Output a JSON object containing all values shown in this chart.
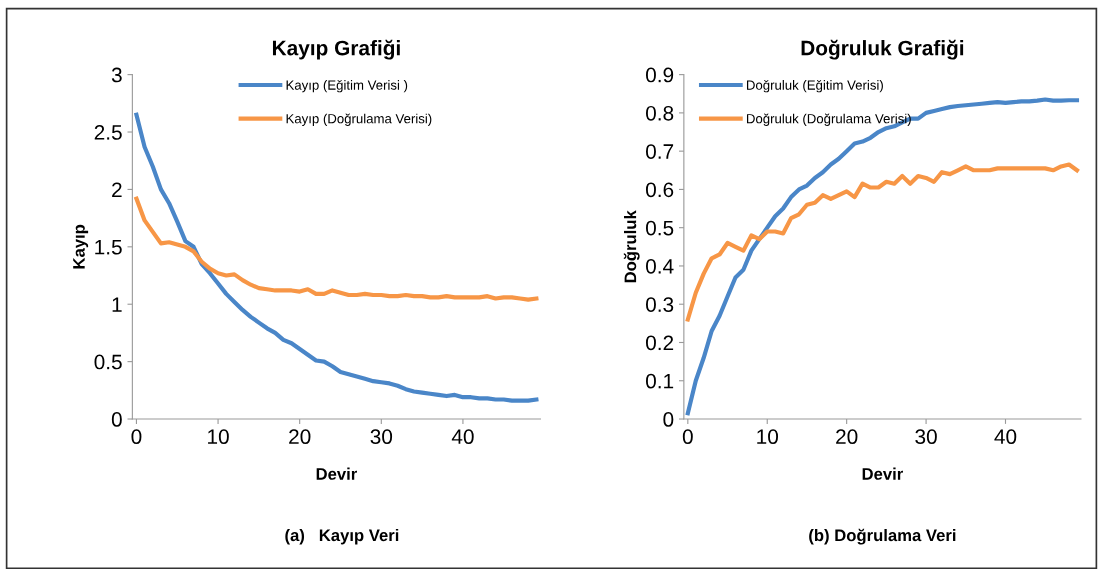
{
  "chart_data": [
    {
      "type": "line",
      "title": "Kayıp Grafiği",
      "xlabel": "Devir",
      "ylabel": "Kayıp",
      "annotations": [
        "(a)   Kayıp Veri"
      ],
      "x": [
        0,
        1,
        2,
        3,
        4,
        5,
        6,
        7,
        8,
        9,
        10,
        11,
        12,
        13,
        14,
        15,
        16,
        17,
        18,
        19,
        20,
        21,
        22,
        23,
        24,
        25,
        26,
        27,
        28,
        29,
        30,
        31,
        32,
        33,
        34,
        35,
        36,
        37,
        38,
        39,
        40,
        41,
        42,
        43,
        44,
        45,
        46,
        47,
        48,
        49
      ],
      "xlim": [
        -0.5,
        49.5
      ],
      "xticks": [
        0,
        10,
        20,
        30,
        40
      ],
      "ylim": [
        0,
        3
      ],
      "yticks": [
        0,
        0.5,
        1,
        1.5,
        2,
        2.5,
        3
      ],
      "grid": false,
      "legend": "top",
      "marker": "none",
      "line_style": "solid",
      "series": [
        {
          "name": "Kayıp (Eğitim Verisi )",
          "color": "#4a86c8",
          "values": [
            2.65,
            2.37,
            2.2,
            2.0,
            1.88,
            1.72,
            1.55,
            1.5,
            1.35,
            1.27,
            1.18,
            1.09,
            1.02,
            0.95,
            0.89,
            0.84,
            0.79,
            0.75,
            0.69,
            0.66,
            0.61,
            0.56,
            0.51,
            0.5,
            0.46,
            0.41,
            0.39,
            0.37,
            0.35,
            0.33,
            0.32,
            0.31,
            0.29,
            0.26,
            0.24,
            0.23,
            0.22,
            0.21,
            0.2,
            0.21,
            0.19,
            0.19,
            0.18,
            0.18,
            0.17,
            0.17,
            0.16,
            0.16,
            0.16,
            0.17
          ]
        },
        {
          "name": "Kayıp (Doğrulama Verisi)",
          "color": "#f79646",
          "values": [
            1.92,
            1.73,
            1.63,
            1.53,
            1.54,
            1.52,
            1.5,
            1.46,
            1.37,
            1.31,
            1.27,
            1.25,
            1.26,
            1.21,
            1.17,
            1.14,
            1.13,
            1.12,
            1.12,
            1.12,
            1.11,
            1.13,
            1.09,
            1.09,
            1.12,
            1.1,
            1.08,
            1.08,
            1.09,
            1.08,
            1.08,
            1.07,
            1.07,
            1.08,
            1.07,
            1.07,
            1.06,
            1.06,
            1.07,
            1.06,
            1.06,
            1.06,
            1.06,
            1.07,
            1.05,
            1.06,
            1.06,
            1.05,
            1.04,
            1.05
          ]
        }
      ]
    },
    {
      "type": "line",
      "title": "Doğruluk Grafiği",
      "xlabel": "Devir",
      "ylabel": "Doğruluk",
      "annotations": [
        "(b) Doğrulama Veri"
      ],
      "x": [
        0,
        1,
        2,
        3,
        4,
        5,
        6,
        7,
        8,
        9,
        10,
        11,
        12,
        13,
        14,
        15,
        16,
        17,
        18,
        19,
        20,
        21,
        22,
        23,
        24,
        25,
        26,
        27,
        28,
        29,
        30,
        31,
        32,
        33,
        34,
        35,
        36,
        37,
        38,
        39,
        40,
        41,
        42,
        43,
        44,
        45,
        46,
        47,
        48,
        49
      ],
      "xlim": [
        -0.5,
        49.5
      ],
      "xticks": [
        0,
        10,
        20,
        30,
        40
      ],
      "ylim": [
        0,
        0.9
      ],
      "yticks": [
        0,
        0.1,
        0.2,
        0.3,
        0.4,
        0.5,
        0.6,
        0.7,
        0.8,
        0.9
      ],
      "grid": false,
      "legend": "top left",
      "marker": "none",
      "line_style": "solid",
      "series": [
        {
          "name": "Doğruluk (Eğitim Verisi)",
          "color": "#4a86c8",
          "values": [
            0.015,
            0.1,
            0.16,
            0.23,
            0.27,
            0.32,
            0.37,
            0.39,
            0.44,
            0.47,
            0.5,
            0.53,
            0.55,
            0.58,
            0.6,
            0.61,
            0.63,
            0.645,
            0.665,
            0.68,
            0.7,
            0.72,
            0.725,
            0.735,
            0.75,
            0.76,
            0.765,
            0.775,
            0.785,
            0.785,
            0.8,
            0.805,
            0.81,
            0.815,
            0.818,
            0.82,
            0.822,
            0.824,
            0.826,
            0.828,
            0.826,
            0.828,
            0.83,
            0.83,
            0.832,
            0.835,
            0.832,
            0.832,
            0.833,
            0.833
          ]
        },
        {
          "name": "Doğruluk (Doğrulama Verisi)",
          "color": "#f79646",
          "values": [
            0.26,
            0.33,
            0.38,
            0.42,
            0.43,
            0.46,
            0.45,
            0.44,
            0.48,
            0.47,
            0.49,
            0.49,
            0.485,
            0.525,
            0.535,
            0.56,
            0.565,
            0.585,
            0.575,
            0.585,
            0.595,
            0.58,
            0.615,
            0.605,
            0.605,
            0.62,
            0.615,
            0.635,
            0.615,
            0.635,
            0.63,
            0.62,
            0.645,
            0.64,
            0.65,
            0.66,
            0.65,
            0.65,
            0.65,
            0.655,
            0.655,
            0.655,
            0.655,
            0.655,
            0.655,
            0.655,
            0.65,
            0.66,
            0.665,
            0.65
          ]
        }
      ]
    }
  ]
}
